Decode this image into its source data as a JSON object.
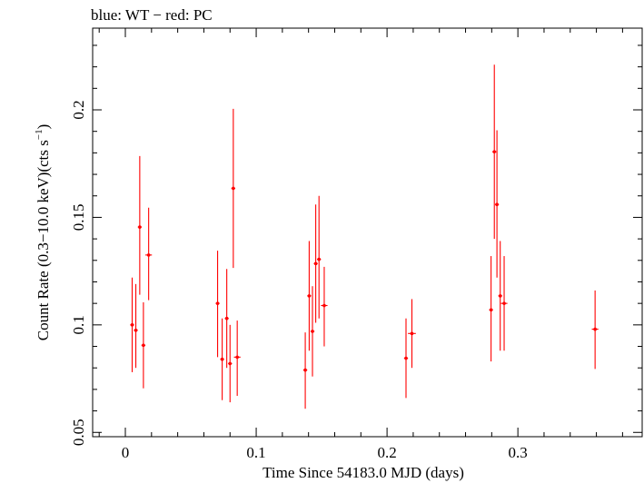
{
  "chart_data": {
    "type": "scatter",
    "title": "blue: WT − red: PC",
    "xlabel": "Time Since 54183.0 MJD (days)",
    "ylabel_main": "Count Rate (0.3−10.0 keV)(cts s",
    "ylabel_sup": "−1",
    "ylabel_end": ")",
    "xlim": [
      -0.025,
      0.395
    ],
    "ylim": [
      0.048,
      0.238
    ],
    "x_ticks": [
      0,
      0.1,
      0.2,
      0.3
    ],
    "x_tick_labels": [
      "0",
      "0.1",
      "0.2",
      "0.3"
    ],
    "y_ticks": [
      0.05,
      0.1,
      0.15,
      0.2
    ],
    "y_tick_labels": [
      "0.05",
      "0.1",
      "0.15",
      "0.2"
    ],
    "grid": false,
    "colors": {
      "pc": "#ff0000",
      "axis": "#000000"
    },
    "series": [
      {
        "name": "PC",
        "points": [
          {
            "x": 0.0052,
            "y": 0.1,
            "lo": 0.078,
            "hi": 0.122,
            "xerr": 0.0015
          },
          {
            "x": 0.008,
            "y": 0.0975,
            "lo": 0.08,
            "hi": 0.119,
            "xerr": 0.0015
          },
          {
            "x": 0.011,
            "y": 0.1455,
            "lo": 0.114,
            "hi": 0.1785,
            "xerr": 0.0015
          },
          {
            "x": 0.0138,
            "y": 0.0905,
            "lo": 0.0705,
            "hi": 0.1105,
            "xerr": 0.0015
          },
          {
            "x": 0.0178,
            "y": 0.1325,
            "lo": 0.1115,
            "hi": 0.1545,
            "xerr": 0.0025
          },
          {
            "x": 0.0705,
            "y": 0.11,
            "lo": 0.085,
            "hi": 0.1345,
            "xerr": 0.0015
          },
          {
            "x": 0.074,
            "y": 0.084,
            "lo": 0.065,
            "hi": 0.103,
            "xerr": 0.0015
          },
          {
            "x": 0.0775,
            "y": 0.103,
            "lo": 0.08,
            "hi": 0.126,
            "xerr": 0.0015
          },
          {
            "x": 0.08,
            "y": 0.082,
            "lo": 0.064,
            "hi": 0.1,
            "xerr": 0.0015
          },
          {
            "x": 0.0825,
            "y": 0.1635,
            "lo": 0.1265,
            "hi": 0.2005,
            "xerr": 0.0015
          },
          {
            "x": 0.0855,
            "y": 0.085,
            "lo": 0.067,
            "hi": 0.102,
            "xerr": 0.0025
          },
          {
            "x": 0.1375,
            "y": 0.079,
            "lo": 0.061,
            "hi": 0.0965,
            "xerr": 0.0015
          },
          {
            "x": 0.1405,
            "y": 0.1135,
            "lo": 0.088,
            "hi": 0.139,
            "xerr": 0.0015
          },
          {
            "x": 0.143,
            "y": 0.097,
            "lo": 0.076,
            "hi": 0.118,
            "xerr": 0.0015
          },
          {
            "x": 0.1455,
            "y": 0.1285,
            "lo": 0.101,
            "hi": 0.156,
            "xerr": 0.0015
          },
          {
            "x": 0.148,
            "y": 0.1305,
            "lo": 0.103,
            "hi": 0.16,
            "xerr": 0.0015
          },
          {
            "x": 0.152,
            "y": 0.109,
            "lo": 0.09,
            "hi": 0.127,
            "xerr": 0.0025
          },
          {
            "x": 0.2145,
            "y": 0.0845,
            "lo": 0.066,
            "hi": 0.103,
            "xerr": 0.0015
          },
          {
            "x": 0.219,
            "y": 0.096,
            "lo": 0.08,
            "hi": 0.112,
            "xerr": 0.003
          },
          {
            "x": 0.2795,
            "y": 0.107,
            "lo": 0.083,
            "hi": 0.132,
            "xerr": 0.0015
          },
          {
            "x": 0.282,
            "y": 0.1805,
            "lo": 0.14,
            "hi": 0.221,
            "xerr": 0.0015
          },
          {
            "x": 0.284,
            "y": 0.156,
            "lo": 0.122,
            "hi": 0.1905,
            "xerr": 0.0015
          },
          {
            "x": 0.2865,
            "y": 0.1135,
            "lo": 0.088,
            "hi": 0.139,
            "xerr": 0.0015
          },
          {
            "x": 0.2895,
            "y": 0.11,
            "lo": 0.088,
            "hi": 0.132,
            "xerr": 0.0025
          },
          {
            "x": 0.359,
            "y": 0.098,
            "lo": 0.0795,
            "hi": 0.116,
            "xerr": 0.0025
          }
        ]
      }
    ]
  }
}
